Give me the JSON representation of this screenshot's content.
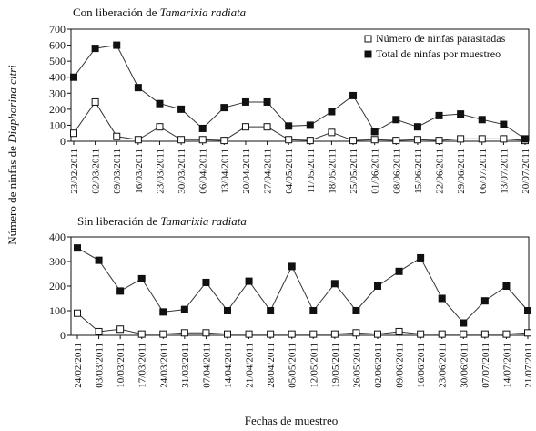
{
  "ylabel": "Número de ninfas de Diaphorina citri",
  "ylabel_plain": "Número de ninfas de ",
  "ylabel_italic": "Diaphorina citri",
  "xlabel": "Fechas de muestreo",
  "colors": {
    "line": "#333333",
    "marker": "#111111",
    "open_fill": "#ffffff"
  },
  "chart_data": [
    {
      "type": "line",
      "title": "Con liberación de Tamarixia radiata",
      "title_plain": "Con liberación de ",
      "title_italic": "Tamarixia radiata",
      "ylim": [
        0,
        700
      ],
      "yticks": [
        0,
        100,
        200,
        300,
        400,
        500,
        600,
        700
      ],
      "grid": false,
      "legend_position": "top-right",
      "categories": [
        "23/02/2011",
        "02/03/2011",
        "09/03/2011",
        "16/03/2011",
        "23/03/2011",
        "30/03/2011",
        "06/04/2011",
        "13/04/2011",
        "20/04/2011",
        "27/04/2011",
        "04/05/2011",
        "11/05/2011",
        "18/05/2011",
        "25/05/2011",
        "01/06/2011",
        "08/06/2011",
        "15/06/2011",
        "22/06/2011",
        "29/06/2011",
        "06/07/2011",
        "13/07/2011",
        "20/07/2011"
      ],
      "series": [
        {
          "name": "Número de ninfas parasitadas",
          "marker": "open-square",
          "values": [
            50,
            245,
            30,
            10,
            90,
            10,
            10,
            5,
            90,
            90,
            10,
            5,
            55,
            5,
            10,
            5,
            10,
            5,
            15,
            15,
            15,
            5
          ]
        },
        {
          "name": "Total de ninfas por muestreo",
          "marker": "filled-square",
          "values": [
            400,
            580,
            600,
            335,
            235,
            200,
            80,
            210,
            245,
            245,
            95,
            100,
            185,
            285,
            60,
            135,
            90,
            160,
            170,
            135,
            105,
            15
          ]
        }
      ]
    },
    {
      "type": "line",
      "title": "Sin liberación de Tamarixia radiata",
      "title_plain": "Sin liberación de ",
      "title_italic": "Tamarixia radiata",
      "ylim": [
        0,
        400
      ],
      "yticks": [
        0,
        100,
        200,
        300,
        400
      ],
      "grid": false,
      "categories": [
        "24/02/2011",
        "03/03/2011",
        "10/03/2011",
        "17/03/2011",
        "24/03/2011",
        "31/03/2011",
        "07/04/2011",
        "14/04/2011",
        "21/04/2011",
        "28/04/2011",
        "05/05/2011",
        "12/05/2011",
        "19/05/2011",
        "26/05/2011",
        "02/06/2011",
        "09/06/2011",
        "16/06/2011",
        "23/06/2011",
        "30/06/2011",
        "07/07/2011",
        "14/07/2011",
        "21/07/2011"
      ],
      "series": [
        {
          "name": "Número de ninfas parasitadas",
          "marker": "open-square",
          "values": [
            90,
            15,
            25,
            5,
            5,
            10,
            10,
            5,
            5,
            5,
            5,
            5,
            5,
            10,
            5,
            15,
            5,
            5,
            5,
            5,
            5,
            10
          ]
        },
        {
          "name": "Total de ninfas por muestreo",
          "marker": "filled-square",
          "values": [
            355,
            305,
            180,
            230,
            95,
            105,
            215,
            100,
            220,
            100,
            280,
            100,
            210,
            100,
            200,
            260,
            315,
            150,
            50,
            140,
            200,
            100
          ]
        }
      ]
    }
  ]
}
